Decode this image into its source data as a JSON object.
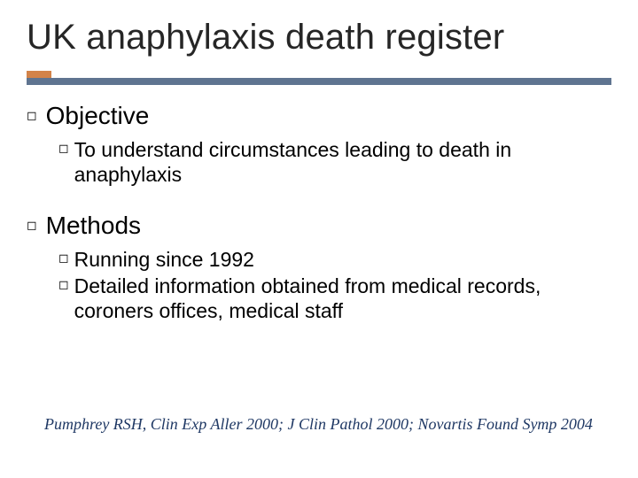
{
  "colors": {
    "accent": "#d38349",
    "rule": "#5f7490",
    "title": "#262626",
    "body": "#000000",
    "citation": "#1f3864",
    "background": "#ffffff"
  },
  "typography": {
    "title_fontsize": 40,
    "l1_fontsize": 28,
    "l2_fontsize": 23,
    "citation_fontsize": 18,
    "font_family": "Arial"
  },
  "title": "UK anaphylaxis death register",
  "bullet_glyphs": {
    "l1": "◻",
    "l2": "◻"
  },
  "sections": [
    {
      "heading": "Objective",
      "items": [
        {
          "lead": "To",
          "rest": " understand circumstances leading to death in anaphylaxis"
        }
      ]
    },
    {
      "heading": "Methods",
      "items": [
        {
          "lead": "Running",
          "rest": " since 1992"
        },
        {
          "lead": "Detailed",
          "rest": " information obtained from medical records, coroners offices, medical staff"
        }
      ]
    }
  ],
  "citation": "Pumphrey RSH, Clin Exp Aller 2000; J Clin Pathol 2000; Novartis Found Symp 2004"
}
